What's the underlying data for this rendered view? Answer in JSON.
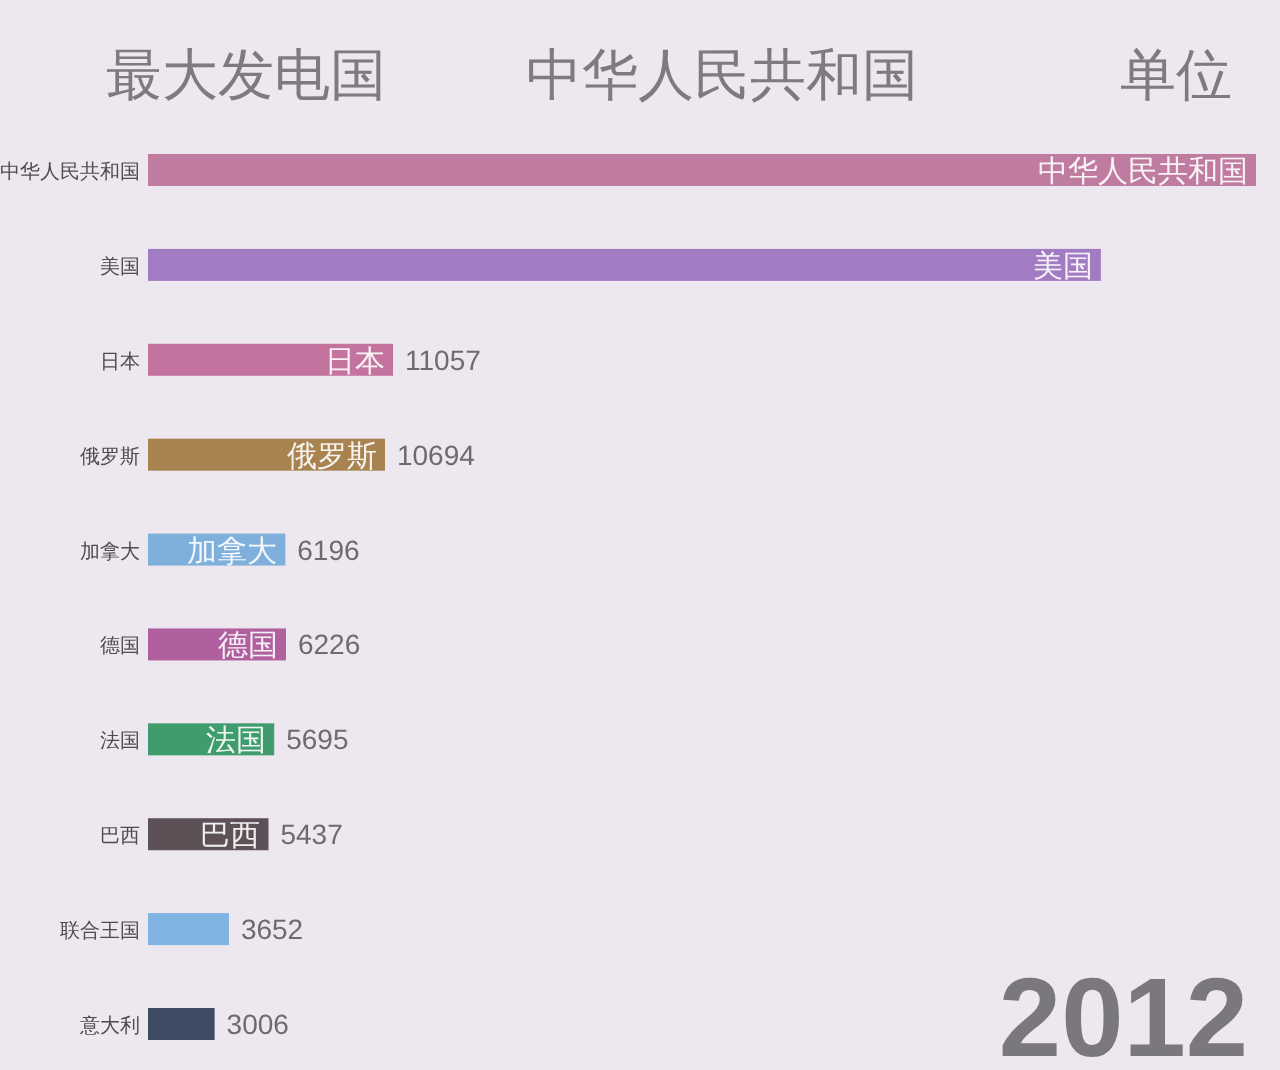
{
  "chart_data": {
    "type": "bar",
    "orientation": "horizontal",
    "title": "最大发电国",
    "subtitle": "中华人民共和国",
    "annotations": [
      "单位",
      "2012"
    ],
    "categories": [
      "中华人民共和国",
      "美国",
      "日本",
      "俄罗斯",
      "加拿大",
      "德国",
      "法国",
      "巴西",
      "联合王国",
      "意大利"
    ],
    "values": [
      50000,
      43000,
      11057,
      10694,
      6196,
      6226,
      5695,
      5437,
      3652,
      3006
    ],
    "value_labels": [
      null,
      null,
      "11057",
      "10694",
      "6196",
      "6226",
      "5695",
      "5437",
      "3652",
      "3006"
    ],
    "colors": [
      "#c07ba0",
      "#a27cc2",
      "#c4739e",
      "#a8834f",
      "#7fb0dc",
      "#b0609f",
      "#3f9c6c",
      "#5e5057",
      "#80b2e2",
      "#3e4b62"
    ]
  }
}
